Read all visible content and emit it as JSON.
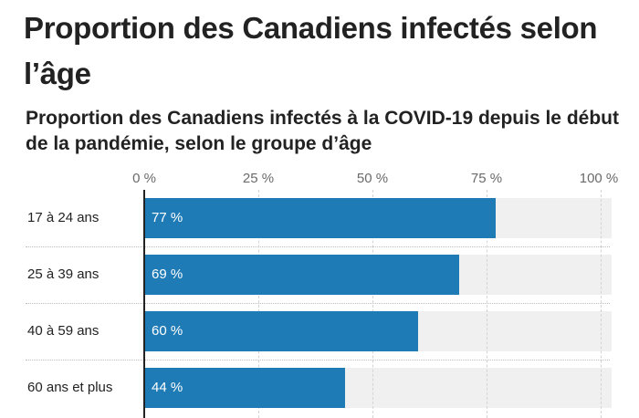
{
  "page": {
    "title": "Proportion des Canadiens infectés selon l’âge"
  },
  "chart_data": {
    "type": "bar",
    "orientation": "horizontal",
    "title": "Proportion des Canadiens infectés à la COVID-19 depuis le début de la pandémie, selon le groupe d’âge",
    "categories": [
      "17 à 24 ans",
      "25 à 39 ans",
      "40 à 59 ans",
      "60 ans et plus"
    ],
    "values": [
      77,
      69,
      60,
      44
    ],
    "value_labels": [
      "77 %",
      "69 %",
      "60 %",
      "44 %"
    ],
    "xlim": [
      0,
      100
    ],
    "ticks": [
      0,
      25,
      50,
      75,
      100
    ],
    "tick_labels": [
      "0 %",
      "25 %",
      "50 %",
      "75 %",
      "100 %"
    ],
    "xlabel": "",
    "ylabel": "",
    "legend": "none",
    "grid": true,
    "colors": {
      "bar": "#1f7bb6",
      "track": "#f0f0f0"
    }
  }
}
